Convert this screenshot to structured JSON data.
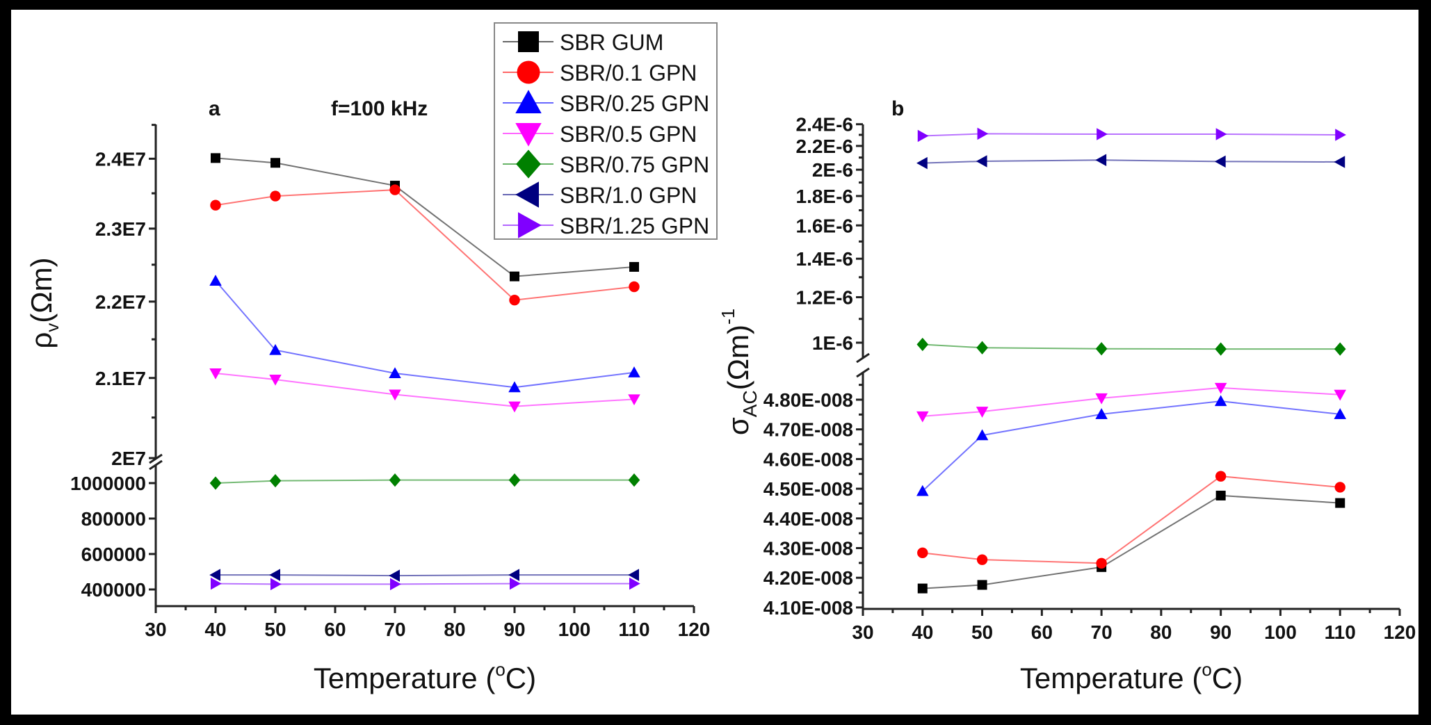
{
  "legend": {
    "placement": "top-center"
  },
  "chart_data": [
    {
      "type": "line",
      "panel_label": "a",
      "annotation": "f=100 kHz",
      "x": [
        40,
        50,
        70,
        90,
        110
      ],
      "xlim": [
        30,
        120
      ],
      "x_tick_labels": [
        "30",
        "40",
        "50",
        "60",
        "70",
        "80",
        "90",
        "100",
        "110",
        "120"
      ],
      "xlabel": {
        "prefix": "Temperature (",
        "sup": "o",
        "suffix": "C)"
      },
      "ylabel": {
        "symbol": "ρ",
        "sub": "v",
        "unit": "(Ωm)",
        "sup": ""
      },
      "y_axis": {
        "broken": true,
        "upper": {
          "scale": "log",
          "range": [
            20000000.0,
            24600000.0
          ],
          "tick_labels": [
            "2E7",
            "2.1E7",
            "2.2E7",
            "2.3E7",
            "2.4E7"
          ],
          "tick_values": [
            20000000.0,
            21000000.0,
            22000000.0,
            23000000.0,
            24000000.0
          ]
        },
        "lower": {
          "scale": "linear",
          "range": [
            306000,
            1086000
          ],
          "tick_labels": [
            "400000",
            "600000",
            "800000",
            "1000000"
          ],
          "tick_values": [
            400000,
            600000,
            800000,
            1000000
          ]
        }
      },
      "grid": false,
      "series": [
        {
          "name": "SBR GUM",
          "color": "#000000",
          "marker": "square",
          "values": [
            24010000.0,
            23940000.0,
            23610000.0,
            22340000.0,
            22470000.0
          ]
        },
        {
          "name": "SBR/0.1 GPN",
          "color": "#ff0000",
          "marker": "circle",
          "values": [
            23330000.0,
            23460000.0,
            23550000.0,
            22020000.0,
            22200000.0
          ]
        },
        {
          "name": "SBR/0.25 GPN",
          "color": "#0000ff",
          "marker": "triangle-up",
          "values": [
            22280000.0,
            21360000.0,
            21060000.0,
            20880000.0,
            21070000.0
          ]
        },
        {
          "name": "SBR/0.5 GPN",
          "color": "#ff00ff",
          "marker": "triangle-down",
          "values": [
            21060000.0,
            20980000.0,
            20790000.0,
            20640000.0,
            20730000.0
          ]
        },
        {
          "name": "SBR/0.75 GPN",
          "color": "#008000",
          "marker": "diamond",
          "values": [
            1000000,
            1013000,
            1017000,
            1017000,
            1017000
          ]
        },
        {
          "name": "SBR/1.0 GPN",
          "color": "#000080",
          "marker": "triangle-left",
          "values": [
            482000,
            482000,
            478000,
            482000,
            482000
          ]
        },
        {
          "name": "SBR/1.25 GPN",
          "color": "#8000ff",
          "marker": "triangle-right",
          "values": [
            433000,
            430000,
            430000,
            433000,
            433000
          ]
        }
      ]
    },
    {
      "type": "line",
      "panel_label": "b",
      "x": [
        40,
        50,
        70,
        90,
        110
      ],
      "xlim": [
        30,
        120
      ],
      "x_tick_labels": [
        "30",
        "40",
        "50",
        "60",
        "70",
        "80",
        "90",
        "100",
        "110",
        "120"
      ],
      "xlabel": {
        "prefix": "Temperature (",
        "sup": "o",
        "suffix": "C)"
      },
      "ylabel": {
        "symbol": "σ",
        "sub": "AC",
        "unit": "(Ωm)",
        "sup": "-1"
      },
      "y_axis": {
        "broken": true,
        "upper": {
          "scale": "log",
          "range": [
            9.4e-07,
            2.4e-06
          ],
          "tick_labels": [
            "1E-6",
            "1.2E-6",
            "1.4E-6",
            "1.6E-6",
            "1.8E-6",
            "2E-6",
            "2.2E-6",
            "2.4E-6"
          ],
          "tick_values": [
            1e-06,
            1.2e-06,
            1.4e-06,
            1.6e-06,
            1.8e-06,
            2e-06,
            2.2e-06,
            2.4e-06
          ]
        },
        "lower": {
          "scale": "linear",
          "range": [
            4.1e-08,
            4.88e-08
          ],
          "tick_labels": [
            "4.10E-008",
            "4.20E-008",
            "4.30E-008",
            "4.40E-008",
            "4.50E-008",
            "4.60E-008",
            "4.70E-008",
            "4.80E-008"
          ],
          "tick_values": [
            4.1e-08,
            4.2e-08,
            4.3e-08,
            4.4e-08,
            4.5e-08,
            4.6e-08,
            4.7e-08,
            4.8e-08
          ]
        }
      },
      "grid": false,
      "series": [
        {
          "name": "SBR GUM",
          "color": "#000000",
          "marker": "square",
          "values": [
            4.164e-08,
            4.176e-08,
            4.236e-08,
            4.477e-08,
            4.452e-08
          ]
        },
        {
          "name": "SBR/0.1 GPN",
          "color": "#ff0000",
          "marker": "circle",
          "values": [
            4.284e-08,
            4.261e-08,
            4.249e-08,
            4.542e-08,
            4.505e-08
          ]
        },
        {
          "name": "SBR/0.25 GPN",
          "color": "#0000ff",
          "marker": "triangle-up",
          "values": [
            4.492e-08,
            4.68e-08,
            4.751e-08,
            4.795e-08,
            4.751e-08
          ]
        },
        {
          "name": "SBR/0.5 GPN",
          "color": "#ff00ff",
          "marker": "triangle-down",
          "values": [
            4.744e-08,
            4.76e-08,
            4.805e-08,
            4.84e-08,
            4.817e-08
          ]
        },
        {
          "name": "SBR/0.75 GPN",
          "color": "#008000",
          "marker": "diamond",
          "values": [
            9.93e-07,
            9.8e-07,
            9.76e-07,
            9.75e-07,
            9.75e-07
          ]
        },
        {
          "name": "SBR/1.0 GPN",
          "color": "#000080",
          "marker": "triangle-left",
          "values": [
            2.054e-06,
            2.069e-06,
            2.079e-06,
            2.067e-06,
            2.063e-06
          ]
        },
        {
          "name": "SBR/1.25 GPN",
          "color": "#8000ff",
          "marker": "triangle-right",
          "values": [
            2.29e-06,
            2.31e-06,
            2.306e-06,
            2.306e-06,
            2.3e-06
          ]
        }
      ]
    }
  ]
}
